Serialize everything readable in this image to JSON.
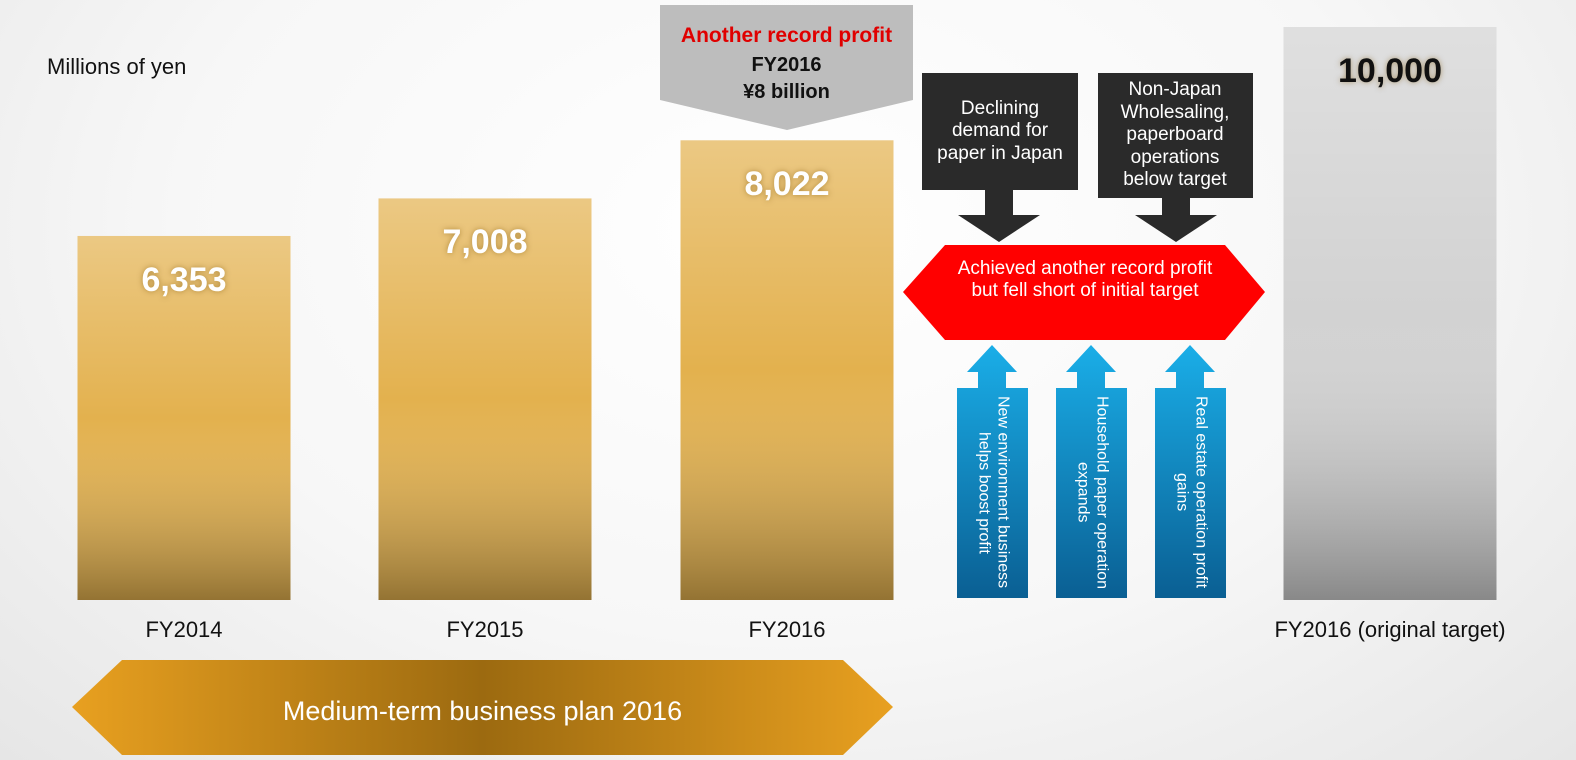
{
  "chart_data": {
    "type": "bar",
    "unit_label": "Millions of yen",
    "categories": [
      "FY2014",
      "FY2015",
      "FY2016",
      "FY2016 (original target)"
    ],
    "values": [
      6353,
      7008,
      8022,
      10000
    ],
    "value_labels": [
      "6,353",
      "7,008",
      "8,022",
      "10,000"
    ],
    "colors": [
      "#e3b14e",
      "#e3b14e",
      "#e3b14e",
      "#d2d2d2"
    ],
    "value_label_colors": [
      "#ffffff",
      "#ffffff",
      "#ffffff",
      "#111111"
    ],
    "ylim": [
      0,
      10000
    ]
  },
  "annotations": {
    "callout": {
      "headline": "Another record profit",
      "lines": [
        "FY2016",
        "¥8 billion"
      ]
    },
    "negative_factors": [
      "Declining demand for paper in Japan",
      "Non-Japan Wholesaling, paperboard operations below target"
    ],
    "result": "Achieved another record profit but fell short of initial target",
    "positive_factors": [
      "New environment business helps boost profit",
      "Household paper operation expands",
      "Real estate operation profit gains"
    ],
    "plan": "Medium-term business plan 2016"
  }
}
